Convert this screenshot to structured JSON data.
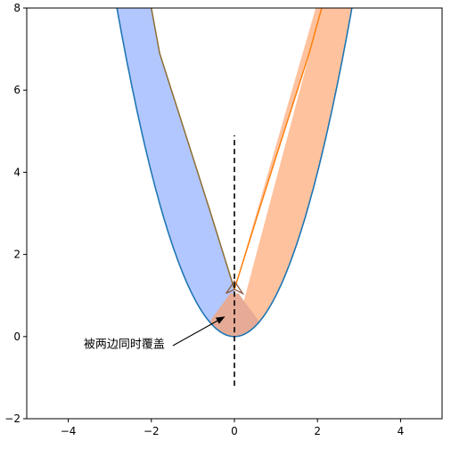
{
  "chart_data": {
    "type": "area",
    "title": "",
    "xlabel": "",
    "ylabel": "",
    "xlim": [
      -5,
      5
    ],
    "ylim": [
      -2,
      8
    ],
    "x_ticks": [
      {
        "value": -4,
        "label": "−4"
      },
      {
        "value": -2,
        "label": "−2"
      },
      {
        "value": 0,
        "label": "0"
      },
      {
        "value": 2,
        "label": "2"
      },
      {
        "value": 4,
        "label": "4"
      }
    ],
    "y_ticks": [
      {
        "value": -2,
        "label": "−2"
      },
      {
        "value": 0,
        "label": "0"
      },
      {
        "value": 2,
        "label": "2"
      },
      {
        "value": 4,
        "label": "4"
      },
      {
        "value": 6,
        "label": "6"
      },
      {
        "value": 8,
        "label": "8"
      }
    ],
    "grid": false,
    "base_curve": {
      "formula": "y = x^2",
      "color": "#1f77b4"
    },
    "offset_curves": [
      {
        "side": "left",
        "color": "#8c6d31",
        "points": [
          [
            -2.0,
            8.0
          ],
          [
            -1.8,
            6.9
          ],
          [
            -1.2,
            5.0
          ],
          [
            -0.6,
            3.1
          ],
          [
            0.0,
            1.15
          ]
        ]
      },
      {
        "side": "right",
        "color": "#ff7f0e",
        "points": [
          [
            0.0,
            1.15
          ],
          [
            0.6,
            3.1
          ],
          [
            1.2,
            5.0
          ],
          [
            1.8,
            6.9
          ],
          [
            2.1,
            8.0
          ]
        ]
      }
    ],
    "bands": [
      {
        "side": "left",
        "fill": "#b3c7ff",
        "x_range": [
          -3,
          0
        ]
      },
      {
        "side": "right",
        "fill": "#ffc29e",
        "x_range": [
          0,
          3
        ]
      }
    ],
    "overlap_fill": "#e5ab96",
    "center_line": {
      "x": 0,
      "y_range": [
        -1.2,
        4.9
      ],
      "style": "dashed",
      "color": "#000000"
    },
    "annotation": {
      "text": "被两边同时覆盖",
      "xy": [
        -0.2,
        0.5
      ],
      "xytext": [
        -3.5,
        -0.2
      ]
    }
  }
}
